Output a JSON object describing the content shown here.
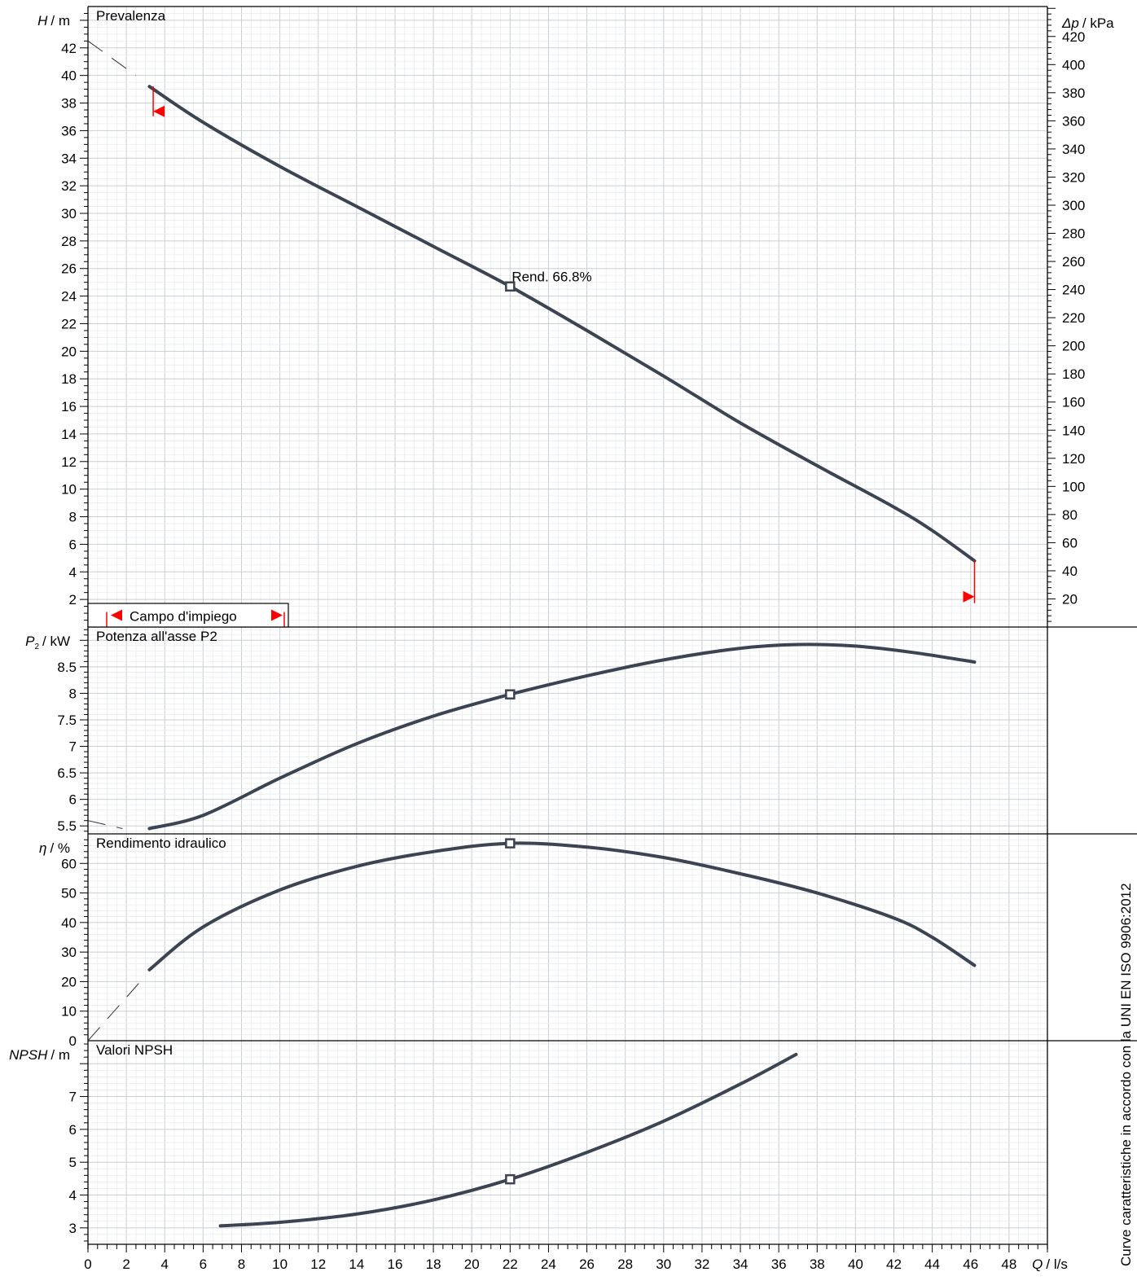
{
  "chart_data": [
    {
      "type": "line",
      "title": "Prevalenza",
      "ylabel_var": "H",
      "ylabel_unit": "/ m",
      "ylim": [
        0,
        45
      ],
      "yticks": [
        2,
        4,
        6,
        8,
        10,
        12,
        14,
        16,
        18,
        20,
        22,
        24,
        26,
        28,
        30,
        32,
        34,
        36,
        38,
        40,
        42
      ],
      "y2label_var": "Δp",
      "y2label_unit": "/ kPa",
      "y2ticks": [
        20,
        40,
        60,
        80,
        100,
        120,
        140,
        160,
        180,
        200,
        220,
        240,
        260,
        280,
        300,
        320,
        340,
        360,
        380,
        400,
        420
      ],
      "series": [
        {
          "x": [
            3.2,
            6,
            10,
            14,
            18,
            22,
            26,
            30,
            34,
            38,
            42,
            44,
            46.2
          ],
          "y": [
            39.2,
            36.6,
            33.4,
            30.5,
            27.6,
            24.7,
            21.5,
            18.2,
            14.8,
            11.7,
            8.7,
            7.0,
            4.8
          ]
        },
        {
          "style": "dashed",
          "x": [
            0,
            2.5
          ],
          "y": [
            42.5,
            40.0
          ]
        }
      ],
      "marker": {
        "x": 22,
        "y": 24.7
      },
      "annotation": "Rend.  66.8%",
      "operating_range": {
        "label": "Campo d'impiego",
        "min_arrow": {
          "x": 3.4,
          "y_top": 39.2,
          "y_bottom": 37.4
        },
        "max_arrow": {
          "x": 46.2,
          "y_top": 4.8,
          "y_bottom": 2.2
        }
      },
      "colors": {
        "curve": "#3c4352",
        "range": "#ff0000"
      }
    },
    {
      "type": "line",
      "title": "Potenza all'asse P2",
      "ylabel_var": "P",
      "ylabel_sub": "2",
      "ylabel_unit": "/ kW",
      "ylim": [
        5.35,
        9.25
      ],
      "yticks": [
        5.5,
        6,
        6.5,
        7,
        7.5,
        8,
        8.5
      ],
      "yticklabels": [
        "5.5",
        "6",
        "6.5",
        "7",
        "7.5",
        "8",
        "8.5"
      ],
      "series": [
        {
          "x": [
            3.2,
            6,
            10,
            14,
            18,
            22,
            26,
            30,
            34,
            37,
            40,
            43,
            46.2
          ],
          "y": [
            5.45,
            5.7,
            6.4,
            7.05,
            7.57,
            7.98,
            8.33,
            8.63,
            8.85,
            8.92,
            8.89,
            8.77,
            8.59
          ]
        },
        {
          "style": "dashed",
          "x": [
            0,
            1.8
          ],
          "y": [
            5.6,
            5.45
          ]
        }
      ],
      "marker": {
        "x": 22,
        "y": 7.98
      }
    },
    {
      "type": "line",
      "title": "Rendimento idraulico",
      "ylabel_var": "η",
      "ylabel_unit": "/ %",
      "ylim": [
        0,
        70
      ],
      "yticks": [
        0,
        10,
        20,
        30,
        40,
        50,
        60
      ],
      "series": [
        {
          "x": [
            3.2,
            6,
            10,
            14,
            18,
            22,
            26,
            30,
            34,
            38,
            42,
            44,
            46.2
          ],
          "y": [
            24.0,
            38.5,
            51.0,
            59.0,
            64.0,
            66.8,
            65.5,
            62.0,
            56.5,
            50.0,
            41.5,
            35.0,
            25.5
          ]
        },
        {
          "style": "dashed",
          "x": [
            0,
            3.0
          ],
          "y": [
            0,
            22.0
          ]
        }
      ],
      "marker": {
        "x": 22,
        "y": 66.8
      }
    },
    {
      "type": "line",
      "title": "Valori NPSH",
      "ylabel_var": "NPSH",
      "ylabel_unit": "/ m",
      "ylim": [
        2.5,
        8.7
      ],
      "yticks": [
        3,
        4,
        5,
        6,
        7
      ],
      "xlabel_var": "Q",
      "xlabel_unit": "/ l/s",
      "xlim": [
        0,
        50
      ],
      "xticks": [
        0,
        2,
        4,
        6,
        8,
        10,
        12,
        14,
        16,
        18,
        20,
        22,
        24,
        26,
        28,
        30,
        32,
        34,
        36,
        38,
        40,
        42,
        44,
        46,
        48
      ],
      "series": [
        {
          "x": [
            6.9,
            10,
            14,
            18,
            22,
            26,
            30,
            34,
            36.9
          ],
          "y": [
            3.06,
            3.17,
            3.42,
            3.85,
            4.48,
            5.3,
            6.25,
            7.38,
            8.28
          ]
        }
      ],
      "marker": {
        "x": 22,
        "y": 4.48
      }
    }
  ],
  "side_note": "Curve caratteristiche in accordo con la UNI EN ISO 9906:2012",
  "colors": {
    "grid_major": "#c9ced6",
    "grid_minor": "#e6e9ee",
    "curve": "#3c4352",
    "frame": "#000000",
    "range": "#ff0000"
  }
}
